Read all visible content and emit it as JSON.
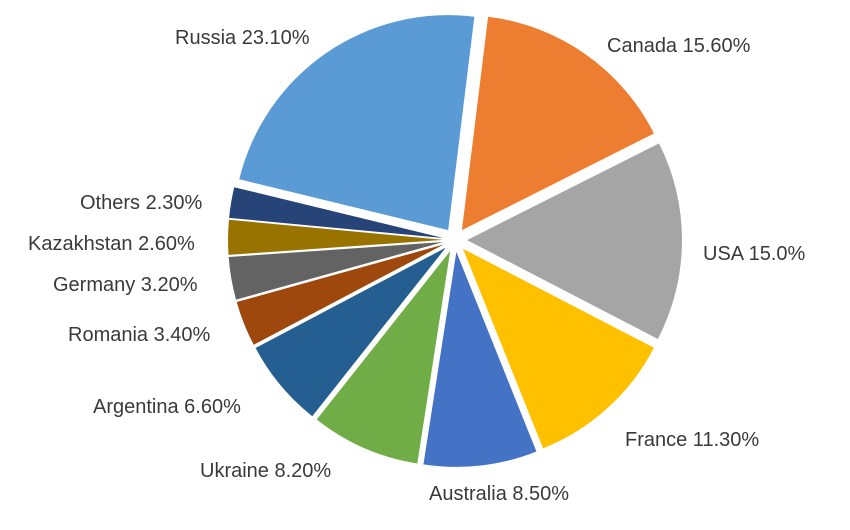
{
  "chart_data": {
    "type": "pie",
    "title": "",
    "labels": [
      "Canada 15.60%",
      "USA 15.0%",
      "France 11.30%",
      "Australia 8.50%",
      "Ukraine 8.20%",
      "Argentina 6.60%",
      "Romania 3.40%",
      "Germany 3.20%",
      "Kazakhstan 2.60%",
      "Others 2.30%",
      "Russia 23.10%"
    ],
    "slices": [
      {
        "name": "Canada",
        "value": 15.6,
        "label": "Canada 15.60%",
        "color": "#ED7D31"
      },
      {
        "name": "USA",
        "value": 15.0,
        "label": "USA 15.0%",
        "color": "#A5A5A5"
      },
      {
        "name": "France",
        "value": 11.3,
        "label": "France 11.30%",
        "color": "#FFC000"
      },
      {
        "name": "Australia",
        "value": 8.5,
        "label": "Australia 8.50%",
        "color": "#4472C4"
      },
      {
        "name": "Ukraine",
        "value": 8.2,
        "label": "Ukraine 8.20%",
        "color": "#70AD47"
      },
      {
        "name": "Argentina",
        "value": 6.6,
        "label": "Argentina 6.60%",
        "color": "#255E91"
      },
      {
        "name": "Romania",
        "value": 3.4,
        "label": "Romania 3.40%",
        "color": "#9E480E"
      },
      {
        "name": "Germany",
        "value": 3.2,
        "label": "Germany 3.20%",
        "color": "#636363"
      },
      {
        "name": "Kazakhstan",
        "value": 2.6,
        "label": "Kazakhstan 2.60%",
        "color": "#997300"
      },
      {
        "name": "Others",
        "value": 2.3,
        "label": "Others 2.30%",
        "color": "#264478"
      },
      {
        "name": "Russia",
        "value": 23.1,
        "label": "Russia 23.10%",
        "color": "#5B9BD5"
      }
    ],
    "legend": "none",
    "exploded": true
  }
}
